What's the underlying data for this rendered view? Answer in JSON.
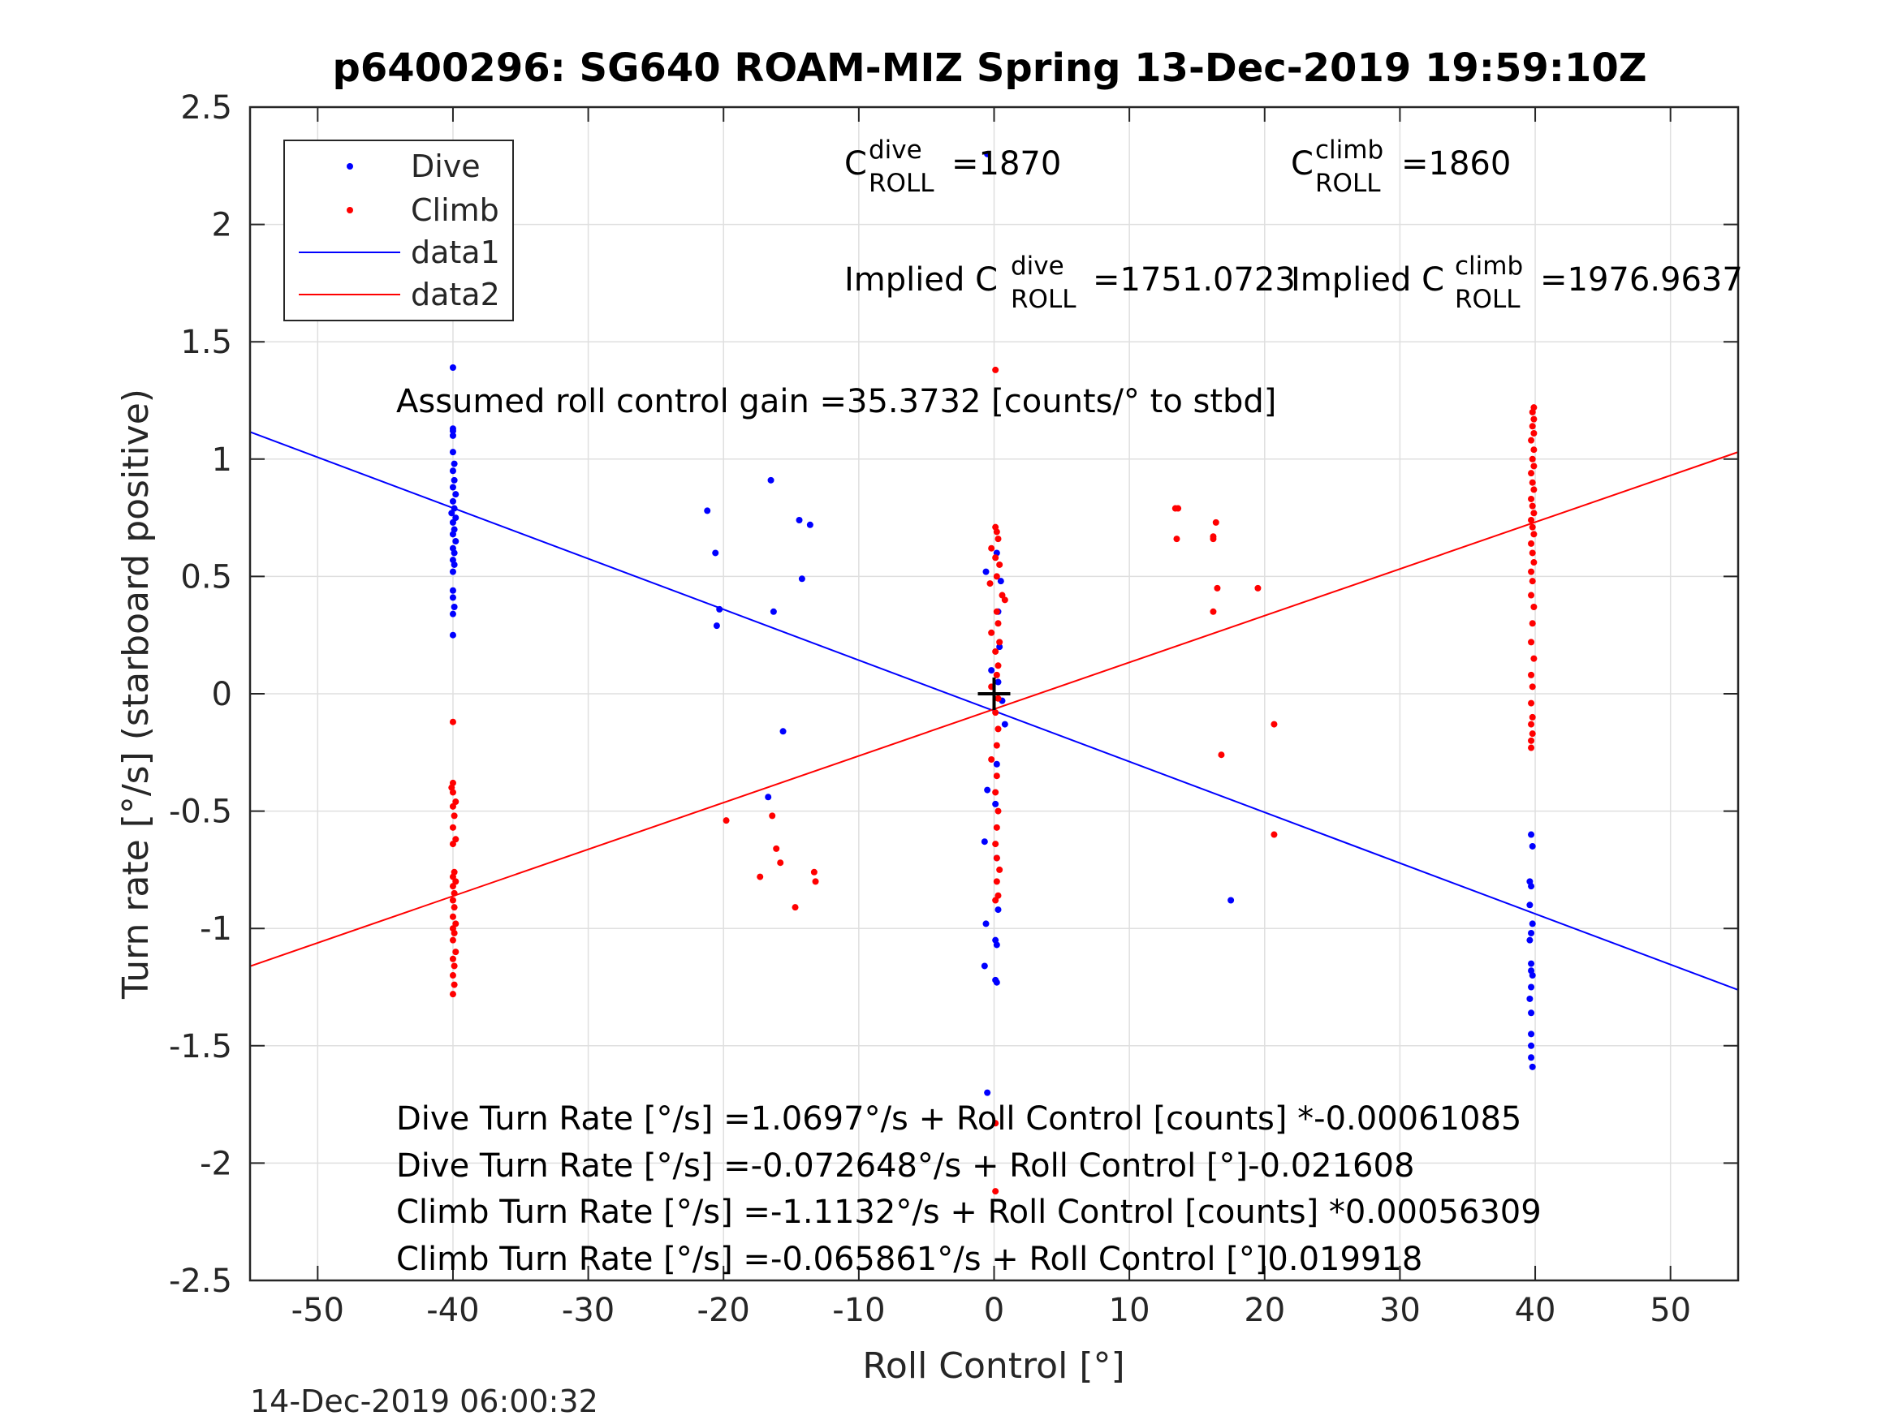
{
  "chart_data": {
    "type": "scatter",
    "title": "p6400296: SG640 ROAM-MIZ Spring 13-Dec-2019 19:59:10Z",
    "xlabel": "Roll Control [°]",
    "ylabel": "Turn rate [°/s] (starboard positive)",
    "xlim": [
      -55,
      55
    ],
    "ylim": [
      -2.5,
      2.5
    ],
    "xticks": [
      -50,
      -40,
      -30,
      -20,
      -10,
      0,
      10,
      20,
      30,
      40,
      50
    ],
    "yticks": [
      2.5,
      2,
      1.5,
      1,
      0.5,
      0,
      -0.5,
      -1,
      -1.5,
      -2,
      -2.5
    ],
    "xtick_labels": [
      "-50",
      "-40",
      "-30",
      "-20",
      "-10",
      "0",
      "10",
      "20",
      "30",
      "40",
      "50"
    ],
    "ytick_labels": [
      "2.5",
      "2",
      "1.5",
      "1",
      "0.5",
      "0",
      "-0.5",
      "-1",
      "-1.5",
      "-2",
      "-2.5"
    ],
    "grid": true,
    "legend_position": "top-left",
    "legend": [
      {
        "label": "Dive",
        "kind": "marker",
        "color": "#0000ff"
      },
      {
        "label": "Climb",
        "kind": "marker",
        "color": "#ff0000"
      },
      {
        "label": "data1",
        "kind": "line",
        "color": "#0000ff"
      },
      {
        "label": "data2",
        "kind": "line",
        "color": "#ff0000"
      }
    ],
    "series": [
      {
        "name": "Dive",
        "mode": "markers",
        "color": "#0000ff",
        "points": [
          [
            -40,
            1.39
          ],
          [
            -40,
            1.13
          ],
          [
            -40,
            1.12
          ],
          [
            -40,
            1.1
          ],
          [
            -40,
            1.03
          ],
          [
            -39.9,
            0.98
          ],
          [
            -40,
            0.95
          ],
          [
            -39.9,
            0.91
          ],
          [
            -40,
            0.88
          ],
          [
            -39.8,
            0.85
          ],
          [
            -40,
            0.82
          ],
          [
            -39.9,
            0.79
          ],
          [
            -40.1,
            0.77
          ],
          [
            -39.8,
            0.75
          ],
          [
            -40,
            0.73
          ],
          [
            -39.9,
            0.7
          ],
          [
            -40,
            0.68
          ],
          [
            -39.8,
            0.65
          ],
          [
            -40,
            0.62
          ],
          [
            -39.9,
            0.6
          ],
          [
            -40,
            0.57
          ],
          [
            -39.9,
            0.55
          ],
          [
            -40,
            0.52
          ],
          [
            -40,
            0.44
          ],
          [
            -40,
            0.41
          ],
          [
            -39.9,
            0.37
          ],
          [
            -40,
            0.34
          ],
          [
            -40,
            0.25
          ],
          [
            -21.2,
            0.78
          ],
          [
            -20.6,
            0.6
          ],
          [
            -20.3,
            0.36
          ],
          [
            -20.5,
            0.29
          ],
          [
            -16.5,
            0.91
          ],
          [
            -16.3,
            0.35
          ],
          [
            -14.4,
            0.74
          ],
          [
            -13.6,
            0.72
          ],
          [
            -14.2,
            0.49
          ],
          [
            -15.6,
            -0.16
          ],
          [
            -16.7,
            -0.44
          ],
          [
            17.5,
            -0.88
          ],
          [
            -0.6,
            0.52
          ],
          [
            0.2,
            0.6
          ],
          [
            0.5,
            0.48
          ],
          [
            0.3,
            0.35
          ],
          [
            0.4,
            0.2
          ],
          [
            -0.2,
            0.1
          ],
          [
            0.3,
            0.05
          ],
          [
            0.6,
            -0.03
          ],
          [
            0.8,
            -0.13
          ],
          [
            0.2,
            -0.3
          ],
          [
            -0.5,
            -0.41
          ],
          [
            0.1,
            -0.47
          ],
          [
            -0.7,
            -0.63
          ],
          [
            0.2,
            -0.7
          ],
          [
            -0.6,
            -0.98
          ],
          [
            0.3,
            -0.92
          ],
          [
            0.1,
            -1.05
          ],
          [
            0.2,
            -1.07
          ],
          [
            -0.7,
            -1.16
          ],
          [
            0.1,
            -1.22
          ],
          [
            0.2,
            -1.23
          ],
          [
            -0.5,
            -1.7
          ],
          [
            -0.5,
            2.3
          ],
          [
            39.7,
            -0.6
          ],
          [
            39.8,
            -0.65
          ],
          [
            39.6,
            -0.8
          ],
          [
            39.7,
            -0.82
          ],
          [
            39.6,
            -0.9
          ],
          [
            39.8,
            -0.98
          ],
          [
            39.7,
            -1.02
          ],
          [
            39.6,
            -1.05
          ],
          [
            39.7,
            -1.15
          ],
          [
            39.7,
            -1.18
          ],
          [
            39.8,
            -1.2
          ],
          [
            39.7,
            -1.25
          ],
          [
            39.6,
            -1.3
          ],
          [
            39.7,
            -1.36
          ],
          [
            39.7,
            -1.45
          ],
          [
            39.7,
            -1.5
          ],
          [
            39.7,
            -1.55
          ],
          [
            39.8,
            -1.59
          ]
        ]
      },
      {
        "name": "Climb",
        "mode": "markers",
        "color": "#ff0000",
        "points": [
          [
            -40,
            -0.12
          ],
          [
            -40,
            -0.38
          ],
          [
            -40.1,
            -0.4
          ],
          [
            -40,
            -0.42
          ],
          [
            -39.8,
            -0.46
          ],
          [
            -40,
            -0.48
          ],
          [
            -39.9,
            -0.52
          ],
          [
            -40,
            -0.57
          ],
          [
            -39.8,
            -0.62
          ],
          [
            -40,
            -0.64
          ],
          [
            -39.9,
            -0.76
          ],
          [
            -40,
            -0.78
          ],
          [
            -39.8,
            -0.8
          ],
          [
            -40,
            -0.82
          ],
          [
            -39.9,
            -0.85
          ],
          [
            -40,
            -0.88
          ],
          [
            -39.9,
            -0.91
          ],
          [
            -40,
            -0.95
          ],
          [
            -39.8,
            -0.98
          ],
          [
            -40,
            -1.0
          ],
          [
            -39.9,
            -1.02
          ],
          [
            -40,
            -1.05
          ],
          [
            -39.8,
            -1.1
          ],
          [
            -40,
            -1.13
          ],
          [
            -39.9,
            -1.16
          ],
          [
            -40,
            -1.2
          ],
          [
            -39.9,
            -1.24
          ],
          [
            -40,
            -1.28
          ],
          [
            -19.8,
            -0.54
          ],
          [
            -16.4,
            -0.52
          ],
          [
            -16.1,
            -0.66
          ],
          [
            -15.8,
            -0.72
          ],
          [
            -17.3,
            -0.78
          ],
          [
            -13.3,
            -0.76
          ],
          [
            -13.2,
            -0.8
          ],
          [
            -14.7,
            -0.91
          ],
          [
            13.4,
            0.79
          ],
          [
            13.6,
            0.79
          ],
          [
            13.5,
            0.66
          ],
          [
            16.2,
            0.66
          ],
          [
            16.4,
            0.73
          ],
          [
            16.2,
            0.67
          ],
          [
            16.5,
            0.45
          ],
          [
            16.2,
            0.35
          ],
          [
            19.5,
            0.45
          ],
          [
            20.7,
            -0.13
          ],
          [
            16.8,
            -0.26
          ],
          [
            20.7,
            -0.6
          ],
          [
            0.1,
            1.38
          ],
          [
            0.1,
            0.71
          ],
          [
            0.2,
            0.69
          ],
          [
            0.3,
            0.66
          ],
          [
            -0.2,
            0.62
          ],
          [
            0.1,
            0.58
          ],
          [
            0.4,
            0.55
          ],
          [
            0.2,
            0.5
          ],
          [
            -0.3,
            0.47
          ],
          [
            0.6,
            0.42
          ],
          [
            0.8,
            0.4
          ],
          [
            0.2,
            0.35
          ],
          [
            0.3,
            0.3
          ],
          [
            -0.2,
            0.26
          ],
          [
            0.4,
            0.22
          ],
          [
            0.1,
            0.18
          ],
          [
            0.3,
            0.12
          ],
          [
            0.2,
            0.08
          ],
          [
            -0.2,
            0.03
          ],
          [
            0.3,
            -0.02
          ],
          [
            0.1,
            -0.08
          ],
          [
            0.3,
            -0.15
          ],
          [
            0.2,
            -0.22
          ],
          [
            -0.2,
            -0.28
          ],
          [
            0.2,
            -0.35
          ],
          [
            0.1,
            -0.42
          ],
          [
            0.3,
            -0.5
          ],
          [
            0.2,
            -0.57
          ],
          [
            0.1,
            -0.64
          ],
          [
            0.2,
            -0.7
          ],
          [
            0.4,
            -0.75
          ],
          [
            0.2,
            -0.8
          ],
          [
            0.1,
            -0.88
          ],
          [
            0.3,
            -0.86
          ],
          [
            0.1,
            -1.83
          ],
          [
            0.1,
            -2.12
          ],
          [
            39.9,
            1.22
          ],
          [
            39.8,
            1.2
          ],
          [
            39.9,
            1.17
          ],
          [
            39.8,
            1.14
          ],
          [
            39.9,
            1.11
          ],
          [
            39.7,
            1.08
          ],
          [
            39.9,
            1.04
          ],
          [
            39.8,
            1.0
          ],
          [
            39.9,
            0.97
          ],
          [
            39.7,
            0.94
          ],
          [
            39.8,
            0.9
          ],
          [
            39.9,
            0.87
          ],
          [
            39.7,
            0.83
          ],
          [
            39.8,
            0.8
          ],
          [
            39.9,
            0.77
          ],
          [
            39.7,
            0.74
          ],
          [
            39.8,
            0.71
          ],
          [
            39.9,
            0.68
          ],
          [
            39.7,
            0.64
          ],
          [
            39.8,
            0.6
          ],
          [
            39.9,
            0.56
          ],
          [
            39.7,
            0.52
          ],
          [
            39.8,
            0.48
          ],
          [
            39.7,
            0.42
          ],
          [
            39.9,
            0.37
          ],
          [
            39.8,
            0.3
          ],
          [
            39.7,
            0.22
          ],
          [
            39.9,
            0.15
          ],
          [
            39.7,
            0.08
          ],
          [
            39.8,
            0.03
          ],
          [
            39.7,
            -0.04
          ],
          [
            39.8,
            -0.1
          ],
          [
            39.7,
            -0.13
          ],
          [
            39.8,
            -0.17
          ],
          [
            39.7,
            -0.2
          ],
          [
            39.7,
            -0.23
          ]
        ]
      },
      {
        "name": "data1",
        "mode": "line",
        "color": "#0000ff",
        "points": [
          [
            -55,
            1.116
          ],
          [
            55,
            -1.262
          ]
        ]
      },
      {
        "name": "data2",
        "mode": "line",
        "color": "#ff0000",
        "points": [
          [
            -55,
            -1.161
          ],
          [
            55,
            1.03
          ]
        ]
      }
    ],
    "center_marker": {
      "x": 0,
      "y": 0,
      "label": "+",
      "color": "#000000"
    },
    "annotations": {
      "c_roll_dive": {
        "prefix": "C",
        "sup": "dive",
        "sub": "ROLL",
        "value": "=1870"
      },
      "c_roll_climb": {
        "prefix": "C",
        "sup": "climb",
        "sub": "ROLL",
        "value": "=1860"
      },
      "implied_dive": {
        "prefix": "Implied C",
        "sup": "dive",
        "sub": "ROLL",
        "value": "=1751.0723"
      },
      "implied_climb": {
        "prefix": "Implied C",
        "sup": "climb",
        "sub": "ROLL",
        "value": "=1976.9637"
      },
      "gain": "Assumed roll control gain =35.3732 [counts/° to stbd]",
      "fit_lines": [
        "Dive Turn Rate [°/s] =1.0697°/s + Roll Control [counts] *-0.00061085",
        "Dive Turn Rate [°/s] =-0.072648°/s + Roll Control [°]-0.021608",
        "Climb Turn Rate [°/s] =-1.1132°/s + Roll Control [counts] *0.00056309",
        "Climb Turn Rate [°/s] =-0.065861°/s + Roll Control [°]0.019918"
      ]
    },
    "footer_timestamp": "14-Dec-2019 06:00:32"
  }
}
